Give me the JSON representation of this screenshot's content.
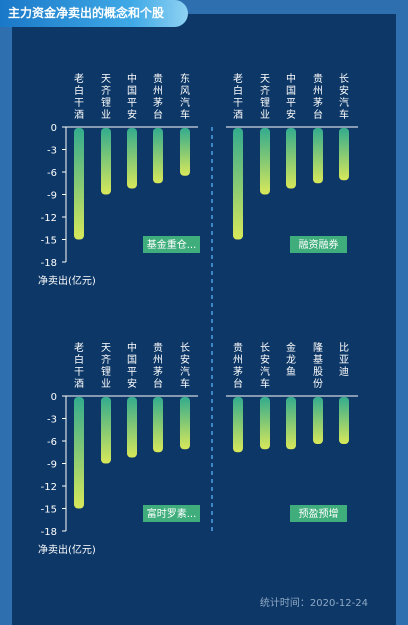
{
  "header": {
    "title": "主力资金净卖出的概念和个股"
  },
  "footer": {
    "stat_time": "统计时间：2020-12-24"
  },
  "colors": {
    "background": "#0d3766",
    "bar_top": "#33ab8e",
    "bar_bottom": "#d8e85a",
    "tag_bg": "#3fae7c",
    "divider": "#3f86c8"
  },
  "chart_data": [
    {
      "type": "bar",
      "ylabel": "净卖出(亿元)",
      "ylim": [
        -18,
        0
      ],
      "ticks": [
        0,
        -3,
        -6,
        -9,
        -12,
        -15,
        -18
      ],
      "left_group": {
        "tag": "基金重仓...",
        "categories": [
          "老白干酒",
          "天齐锂业",
          "中国平安",
          "贵州茅台",
          "东风汽车"
        ],
        "values": [
          -15,
          -9,
          -8.2,
          -7.5,
          -6.5
        ]
      },
      "right_group": {
        "tag": "融资融券",
        "categories": [
          "老白干酒",
          "天齐锂业",
          "中国平安",
          "贵州茅台",
          "长安汽车"
        ],
        "values": [
          -15,
          -9,
          -8.2,
          -7.5,
          -7.1
        ]
      }
    },
    {
      "type": "bar",
      "ylabel": "净卖出(亿元)",
      "ylim": [
        -18,
        0
      ],
      "ticks": [
        0,
        -3,
        -6,
        -9,
        -12,
        -15,
        -18
      ],
      "left_group": {
        "tag": "富时罗素...",
        "categories": [
          "老白干酒",
          "天齐锂业",
          "中国平安",
          "贵州茅台",
          "长安汽车"
        ],
        "values": [
          -15,
          -9,
          -8.2,
          -7.5,
          -7.1
        ]
      },
      "right_group": {
        "tag": "预盈预增",
        "categories": [
          "贵州茅台",
          "长安汽车",
          "金龙鱼",
          "隆基股份",
          "比亚迪"
        ],
        "values": [
          -7.5,
          -7.1,
          -7.1,
          -6.4,
          -6.4
        ]
      }
    }
  ]
}
